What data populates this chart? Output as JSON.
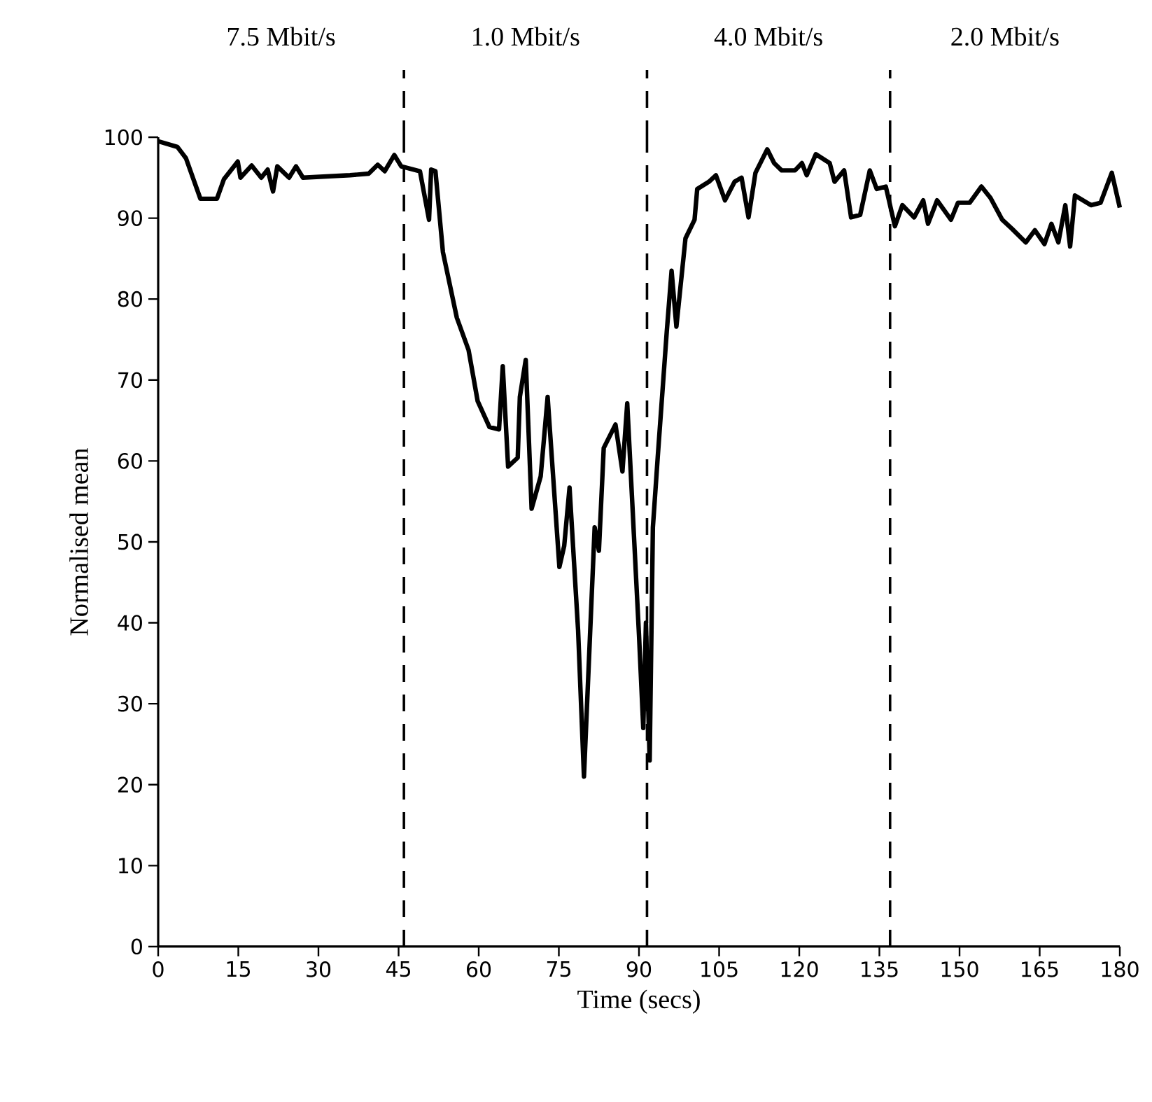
{
  "chart_data": {
    "type": "line",
    "xlabel": "Time (secs)",
    "ylabel": "Normalised mean",
    "annotations": [
      "7.5 Mbit/s",
      "1.0 Mbit/s",
      "4.0 Mbit/s",
      "2.0 Mbit/s"
    ],
    "xlim": [
      0,
      180
    ],
    "ylim": [
      0,
      100
    ],
    "xticks": [
      0,
      15,
      30,
      45,
      60,
      75,
      90,
      105,
      120,
      135,
      150,
      165,
      180
    ],
    "yticks": [
      0,
      10,
      20,
      30,
      40,
      50,
      60,
      70,
      80,
      90,
      100
    ],
    "grid": false,
    "marker": "none",
    "line_style": "solid",
    "ref_lines": [
      {
        "axis": "x",
        "value": 46,
        "line_style": "dashed",
        "color": "#000000"
      },
      {
        "axis": "x",
        "value": 91.5,
        "line_style": "dashed",
        "color": "#000000"
      },
      {
        "axis": "x",
        "value": 137,
        "line_style": "dashed",
        "color": "#000000"
      }
    ],
    "series": [
      {
        "color": "#000000",
        "x": [
          0,
          3.6,
          5.2,
          7.9,
          11,
          12.3,
          14.9,
          15.4,
          17.5,
          19.3,
          20.5,
          21.5,
          22.3,
          24.5,
          25.8,
          27.1,
          35.9,
          39.4,
          41.1,
          42.4,
          44.2,
          45.5,
          49,
          50.7,
          51.1,
          51.9,
          53.3,
          55.9,
          58.1,
          59.8,
          62,
          63.8,
          64.5,
          65.5,
          67.3,
          67.7,
          68.8,
          69.9,
          71.6,
          72.9,
          75.1,
          76,
          77,
          78.6,
          79.7,
          81.7,
          82.5,
          83.4,
          85.6,
          86.9,
          87.8,
          90,
          90.8,
          91.3,
          92,
          92.6,
          93.5,
          95.2,
          96.1,
          97,
          98.7,
          100.4,
          100.9,
          103.1,
          104.4,
          106.1,
          107.9,
          109.2,
          110.5,
          111.8,
          114,
          115.3,
          116.7,
          119.2,
          120.5,
          121.4,
          123.1,
          125.7,
          126.6,
          128.4,
          129.7,
          131.4,
          133.2,
          134.5,
          136.2,
          137.9,
          139.3,
          141.5,
          143.2,
          144.1,
          145.8,
          148.4,
          149.7,
          151.9,
          154.1,
          155.8,
          158,
          159.8,
          162.4,
          164.1,
          165.9,
          167.2,
          168.5,
          169.8,
          170.7,
          171.6,
          174.6,
          176.4,
          178.5,
          180
        ],
        "values": [
          99.5,
          98.8,
          97.4,
          92.4,
          92.4,
          94.8,
          97,
          95,
          96.5,
          95,
          96,
          93.3,
          96.4,
          95,
          96.4,
          95,
          95.3,
          95.5,
          96.6,
          95.8,
          97.8,
          96.4,
          95.8,
          89.8,
          96,
          95.8,
          85.8,
          77.7,
          73.7,
          67.4,
          64.2,
          63.9,
          71.7,
          59.3,
          60.4,
          67.9,
          72.5,
          54.1,
          58.1,
          67.9,
          46.9,
          49.5,
          56.7,
          39.1,
          21,
          51.8,
          48.9,
          61.6,
          64.5,
          58.7,
          67.1,
          38.5,
          27,
          40,
          23,
          51.8,
          60.4,
          76,
          83.5,
          76.6,
          87.5,
          89.8,
          93.6,
          94.5,
          95.3,
          92.2,
          94.5,
          95,
          90.1,
          95.6,
          98.5,
          96.8,
          95.9,
          95.9,
          96.8,
          95.3,
          97.9,
          96.8,
          94.5,
          95.9,
          90.1,
          90.4,
          95.9,
          93.6,
          93.9,
          89,
          91.6,
          90.1,
          92.2,
          89.3,
          92.2,
          89.8,
          91.9,
          91.9,
          93.9,
          92.5,
          89.8,
          88.7,
          87,
          88.5,
          86.8,
          89.3,
          87,
          91.6,
          86.5,
          92.8,
          91.6,
          91.9,
          95.6,
          91.3
        ]
      }
    ]
  }
}
